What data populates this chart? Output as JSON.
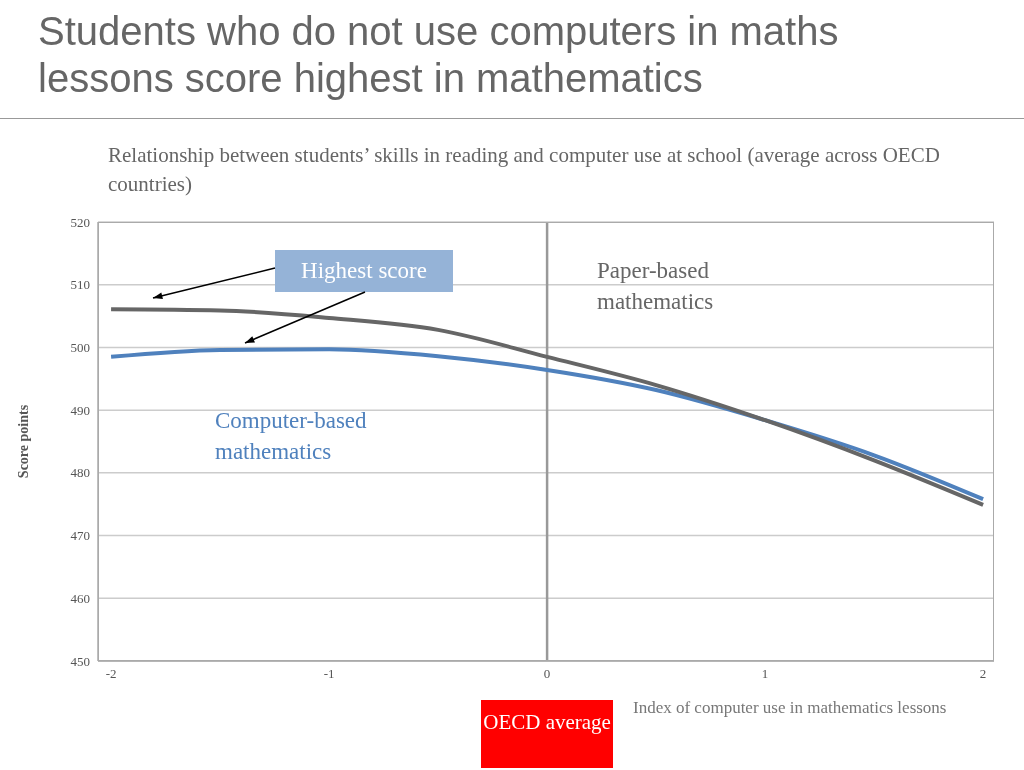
{
  "chart_data": {
    "type": "line",
    "title": "Students who do not use computers in maths lessons score highest in mathematics",
    "subtitle": "Relationship between students’ skills in reading and computer use at school (average across OECD countries)",
    "xlabel": "Index of computer use in mathematics lessons",
    "ylabel": "Score points",
    "x": [
      -2,
      -1.5,
      -1,
      -0.5,
      0,
      0.5,
      1,
      1.5,
      2
    ],
    "series": [
      {
        "name": "Computer-based mathematics",
        "color": "#4f81bd",
        "values": [
          498.5,
          499.6,
          499.7,
          498.6,
          496.4,
          493.2,
          488.4,
          482.8,
          475.8
        ]
      },
      {
        "name": "Paper-based mathematics",
        "color": "#666666",
        "values": [
          506.1,
          505.9,
          504.7,
          502.8,
          498.5,
          494,
          488.4,
          482,
          474.9
        ]
      }
    ],
    "xlim": [
      -2.06,
      2.05
    ],
    "xticks": [
      -2,
      -1,
      0,
      1,
      2
    ],
    "ylim": [
      450,
      520
    ],
    "yticks": [
      450,
      460,
      470,
      480,
      490,
      500,
      510,
      520
    ],
    "grid": "y",
    "marker": "none",
    "line_style": "solid",
    "ref_lines": [
      {
        "axis": "x",
        "value": 0,
        "label": "OECD average",
        "color": "#999999"
      }
    ],
    "annotations": [
      "Highest score"
    ]
  }
}
